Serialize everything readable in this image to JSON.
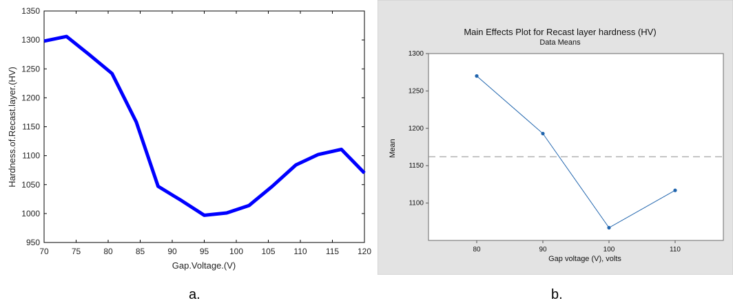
{
  "chart_data": [
    {
      "type": "line",
      "title": "",
      "xlabel": "Gap.Voltage.(V)",
      "ylabel": "Hardness.of.Recast.layer.(HV)",
      "xlim": [
        70,
        120
      ],
      "ylim": [
        950,
        1350
      ],
      "x_ticks": [
        70,
        75,
        80,
        85,
        90,
        95,
        100,
        105,
        110,
        115,
        120
      ],
      "y_ticks": [
        950,
        1000,
        1050,
        1100,
        1150,
        1200,
        1250,
        1300,
        1350
      ],
      "grid": false,
      "color": "#0000ff",
      "series": [
        {
          "x": [
            70,
            73.5,
            77,
            80.6,
            84.4,
            87.8,
            91.5,
            95,
            98.5,
            102,
            105.6,
            109.3,
            112.8,
            116.4,
            120
          ],
          "y": [
            1298,
            1306,
            1275,
            1242,
            1158,
            1047,
            1022,
            997,
            1001,
            1014,
            1047,
            1084,
            1102,
            1111,
            1070
          ]
        }
      ]
    },
    {
      "type": "line",
      "title": "Main Effects Plot for Recast layer hardness (HV)",
      "subtitle": "Data Means",
      "xlabel": "Gap voltage (V), volts",
      "ylabel": "Mean",
      "categories": [
        "80",
        "90",
        "100",
        "110"
      ],
      "ylim": [
        1050,
        1300
      ],
      "y_ticks": [
        1100,
        1150,
        1200,
        1250,
        1300
      ],
      "reference_line": 1162,
      "grid": false,
      "color": "#1f64ad",
      "series": [
        {
          "values": [
            1270,
            1193,
            1067,
            1117
          ]
        }
      ]
    }
  ],
  "captions": {
    "a": "a.",
    "b": "b."
  }
}
